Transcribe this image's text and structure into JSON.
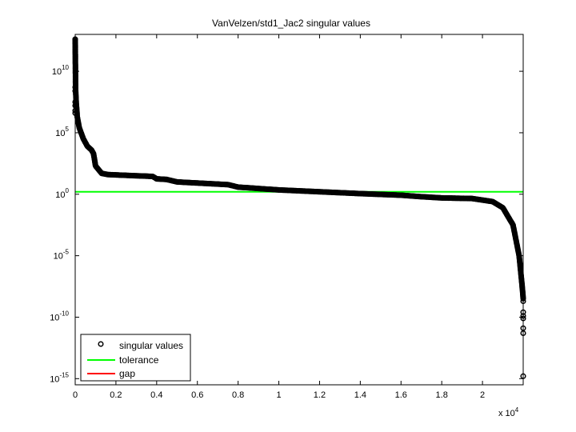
{
  "chart_data": {
    "type": "scatter",
    "title": "VanVelzen/std1_Jac2 singular values",
    "xlabel": "",
    "ylabel": "",
    "x_multiplier_label": "x 10",
    "x_multiplier_exp": "4",
    "xlim": [
      0,
      2.2
    ],
    "ylim_log10": [
      -15.5,
      13
    ],
    "y_scale": "log",
    "grid": false,
    "legend_position": "bottom-left",
    "x_ticks": [
      {
        "value": 0,
        "label": "0"
      },
      {
        "value": 0.2,
        "label": "0.2"
      },
      {
        "value": 0.4,
        "label": "0.4"
      },
      {
        "value": 0.6,
        "label": "0.6"
      },
      {
        "value": 0.8,
        "label": "0.8"
      },
      {
        "value": 1.0,
        "label": "1"
      },
      {
        "value": 1.2,
        "label": "1.2"
      },
      {
        "value": 1.4,
        "label": "1.4"
      },
      {
        "value": 1.6,
        "label": "1.6"
      },
      {
        "value": 1.8,
        "label": "1.8"
      },
      {
        "value": 2.0,
        "label": "2"
      }
    ],
    "y_ticks": [
      {
        "exp": 10,
        "base": "10",
        "sup": "10"
      },
      {
        "exp": 5,
        "base": "10",
        "sup": "5"
      },
      {
        "exp": 0,
        "base": "10",
        "sup": "0"
      },
      {
        "exp": -5,
        "base": "10",
        "sup": "-5"
      },
      {
        "exp": -10,
        "base": "10",
        "sup": "-10"
      },
      {
        "exp": -15,
        "base": "10",
        "sup": "-15"
      }
    ],
    "series": [
      {
        "name": "singular values",
        "marker": "circle",
        "color": "#000000",
        "curve_log10": [
          [
            0.0,
            12.6
          ],
          [
            0.002,
            8.5
          ],
          [
            0.005,
            7.4
          ],
          [
            0.01,
            6.3
          ],
          [
            0.02,
            5.4
          ],
          [
            0.04,
            4.5
          ],
          [
            0.06,
            3.9
          ],
          [
            0.08,
            3.6
          ],
          [
            0.09,
            3.3
          ],
          [
            0.1,
            2.3
          ],
          [
            0.13,
            1.7
          ],
          [
            0.16,
            1.6
          ],
          [
            0.3,
            1.5
          ],
          [
            0.38,
            1.45
          ],
          [
            0.4,
            1.25
          ],
          [
            0.45,
            1.2
          ],
          [
            0.5,
            1.0
          ],
          [
            0.75,
            0.78
          ],
          [
            0.8,
            0.58
          ],
          [
            1.0,
            0.35
          ],
          [
            1.2,
            0.2
          ],
          [
            1.4,
            0.05
          ],
          [
            1.6,
            -0.08
          ],
          [
            1.7,
            -0.2
          ],
          [
            1.8,
            -0.3
          ],
          [
            1.95,
            -0.35
          ],
          [
            2.05,
            -0.6
          ],
          [
            2.1,
            -1.1
          ],
          [
            2.15,
            -2.5
          ],
          [
            2.18,
            -5.0
          ],
          [
            2.195,
            -7.5
          ],
          [
            2.2,
            -8.5
          ]
        ],
        "outliers_log10": [
          [
            0.0,
            12.6
          ],
          [
            0.0,
            8.7
          ],
          [
            0.0,
            8.4
          ],
          [
            0.0,
            7.5
          ],
          [
            0.0,
            7.2
          ],
          [
            0.0,
            6.8
          ],
          [
            0.0,
            6.6
          ],
          [
            2.2,
            -8.7
          ],
          [
            2.2,
            -9.6
          ],
          [
            2.2,
            -9.9
          ],
          [
            2.2,
            -10.1
          ],
          [
            2.2,
            -10.9
          ],
          [
            2.2,
            -11.3
          ],
          [
            2.2,
            -14.8
          ]
        ]
      },
      {
        "name": "tolerance",
        "type": "line",
        "color": "#00ff00",
        "y_log10": 0.2
      },
      {
        "name": "gap",
        "type": "line",
        "color": "#ff0000"
      }
    ]
  }
}
